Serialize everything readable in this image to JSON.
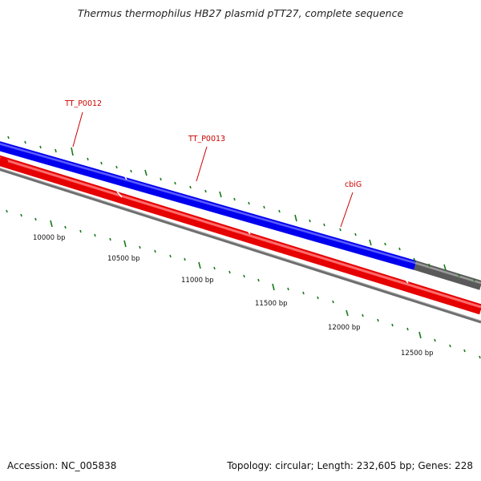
{
  "title": "Thermus thermophilus HB27 plasmid pTT27, complete sequence",
  "footer": {
    "accession": "Accession: NC_005838",
    "summary": "Topology: circular; Length: 232,605 bp; Genes: 228"
  },
  "colors": {
    "forward_strand": "#0000ff",
    "reverse_strand": "#ff0000",
    "backbone": "#808080",
    "other_feature": "#5a5a5a",
    "tick": "#1a7a1a",
    "label": "#cc0000"
  },
  "gene_labels": [
    {
      "text": "TT_P0012"
    },
    {
      "text": "TT_P0013"
    },
    {
      "text": "cbiG"
    }
  ],
  "scale_labels": [
    "10000 bp",
    "10500 bp",
    "11000 bp",
    "11500 bp",
    "12000 bp",
    "12500 bp"
  ]
}
